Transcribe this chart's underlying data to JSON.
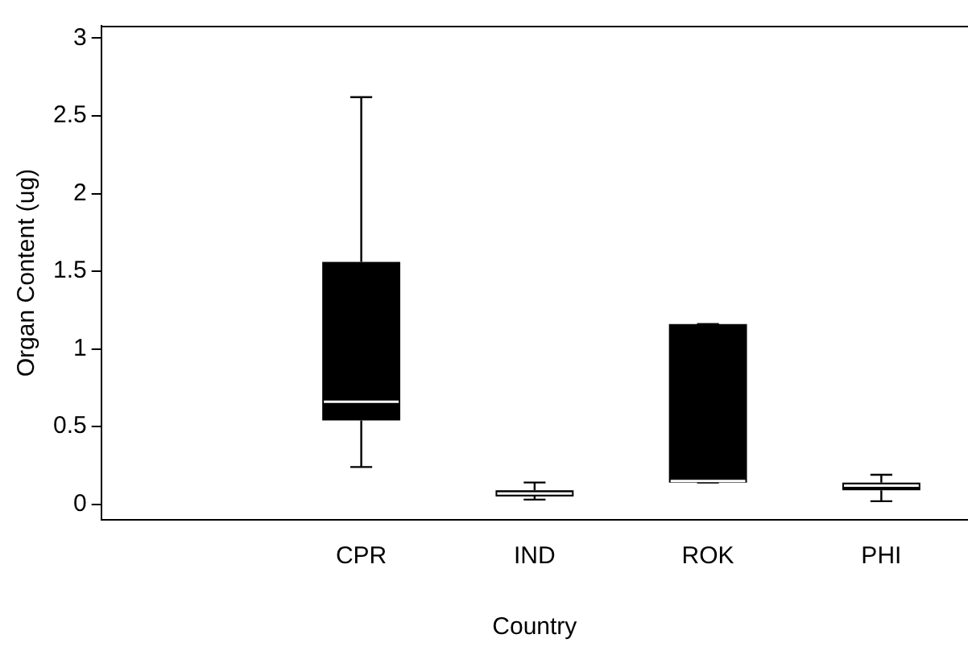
{
  "chart_data": {
    "type": "box",
    "xlabel": "Country",
    "ylabel": "Organ Content (ug)",
    "categories": [
      null,
      "CPR",
      "IND",
      "ROK",
      "PHI"
    ],
    "boxes": [
      null,
      {
        "low": 0.24,
        "q1": 0.54,
        "median": 0.66,
        "q3": 1.56,
        "high": 2.62
      },
      {
        "low": 0.03,
        "q1": 0.05,
        "median": 0.07,
        "q3": 0.09,
        "high": 0.14
      },
      {
        "low": 0.14,
        "q1": 0.14,
        "median": 0.15,
        "q3": 1.16,
        "high": 1.16
      },
      {
        "low": 0.02,
        "q1": 0.09,
        "median": 0.12,
        "q3": 0.14,
        "high": 0.19
      }
    ],
    "color": "#000000",
    "ylim": [
      -0.1,
      3.08
    ],
    "yticks": [
      0,
      0.5,
      1,
      1.5,
      2,
      2.5,
      3
    ],
    "grid": false,
    "legend": false
  }
}
